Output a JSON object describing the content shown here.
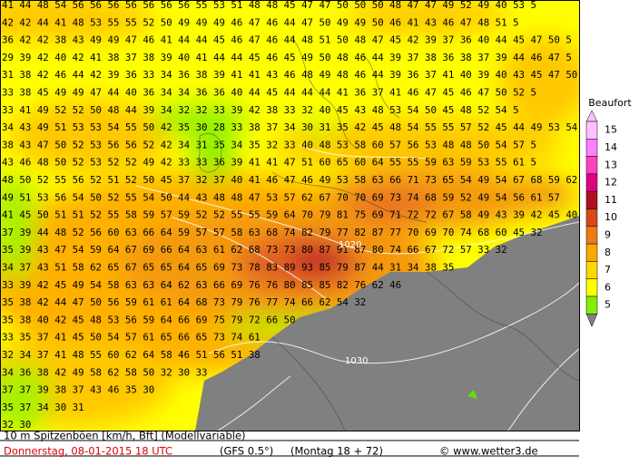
{
  "map": {
    "gust_rows": [
      "41 44 48 54 56 56 56 56 56 56 56 55 53 51 48 48 45 47 47 50 50 50 48 47 47 49 52 49 40 53 5",
      "42 42 44 41 48 53 55 55 52 50 49 49 49 46 47 46 44 47 50 49 49 50 46 41 43 46 47 48 51 5",
      "36 42 42 38 43 49 49 47 46 41 44 44 45 46 47 46 44 48 51 50 48 47 45 42 39 37 36 40 44 45 47 50 5",
      "29 39 42 40 42 41 38 37 38 39 40 41 44 44 45 46 45 49 50 48 46 44 39 37 38 36 38 37 39 44 46 47 5",
      "31 38 42 46 44 42 39 36 33 34 36 38 39 41 41 43 46 48 49 48 46 44 39 36 37 41 40 39 40 43 45 47 50 5",
      "33 38 45 49 49 47 44 40 36 34 34 36 36 40 44 45 44 44 44 41 36 37 41 46 47 45 46 47 50 52 5",
      "33 41 49 52 52 50 48 44 39 34 32 32 33 39 42 38 33 32 40 45 43 48 53 54 50 45 48 52 54 5",
      "34 43 49 51 53 53 54 55 50 42 35 30 28 33 38 37 34 30 31 35 42 45 48 54 55 55 57 52 45 44 49 53 54 5",
      "38 43 47 50 52 53 56 56 52 42 34 31 35 34 35 32 33 40 48 53 58 60 57 56 53 48 48 50 54 57 5",
      "43 46 48 50 52 53 52 52 49 42 33 33 36 39 41 41 47 51 60 65 60 64 55 55 59 63 59 53 55 61 5",
      "48 50 52 55 56 52 51 52 50 45 37 32 37 40 41 46 47 46 49 53 58 63 66 71 73 65 54 49 54 67 68 59 62 4",
      "49 51 53 56 54 50 52 55 54 50 44 43 48 48 47 53 57 62 67 70 70 69 73 74 68 59 52 49 54 56 61 57",
      "41 45 50 51 51 52 55 58 59 57 59 52 52 55 55 59 64 70 79 81 75 69 71 72 72 67 58 49 43 39 42 45 40",
      "37 39 44 48 52 56 60 63 66 64 59 57 57 58 63 68 74 82 79 77 82 87 77 70 69 70 74 68 60 45 32",
      "35 39 43 47 54 59 64 67 69 66 64 63 61 62 68 73 73 80 87 91 87 80 74 66 67 72 57 33 32",
      "34 37 43 51 58 62 65 67 65 65 64 65 69 73 78 83 89 93 85 79 87 44 31 34 38 35",
      "33 39 42 45 49 54 58 63 63 64 62 63 66 69 76 76 80 85 85 82 76 62 46",
      "35 38 42 44 47 50 56 59 61 61 64 68 73 79 76 77 74 66 62 54 32",
      "35 38 40 42 45 48 53 56 59 64 66 69 75 79 72 66 50",
      "33 35 37 41 45 50 54 57 61 65 66 65 73 74 61",
      "32 34 37 41 48 55 60 62 64 58 46 51 56 51 38",
      "34 36 38 42 49 58 62 58 50 32 30 33",
      "37 37 39 38 37 43 46 35 30",
      "35 37 34 30 31",
      "32 30"
    ],
    "isobar_labels": [
      "1020",
      "1030"
    ]
  },
  "legend": {
    "title": "Beaufort",
    "levels": [
      {
        "value": 15,
        "color": "#ffc0ff"
      },
      {
        "value": 14,
        "color": "#ff80ff"
      },
      {
        "value": 13,
        "color": "#ff40c0"
      },
      {
        "value": 12,
        "color": "#e00080"
      },
      {
        "value": 11,
        "color": "#b01020"
      },
      {
        "value": 10,
        "color": "#d84818"
      },
      {
        "value": 9,
        "color": "#f07818"
      },
      {
        "value": 8,
        "color": "#f8a800"
      },
      {
        "value": 7,
        "color": "#ffd800"
      },
      {
        "value": 6,
        "color": "#ffff00"
      },
      {
        "value": 5,
        "color": "#80f000"
      }
    ]
  },
  "footer": {
    "caption": "10 m Spitzenböen [km/h, Bft] (Modellvariable)",
    "date": "Donnerstag, 08-01-2015   18 UTC",
    "model": "(GFS 0.5°)",
    "run": "(Montag 18 + 72)",
    "credit": "© www.wetter3.de"
  }
}
